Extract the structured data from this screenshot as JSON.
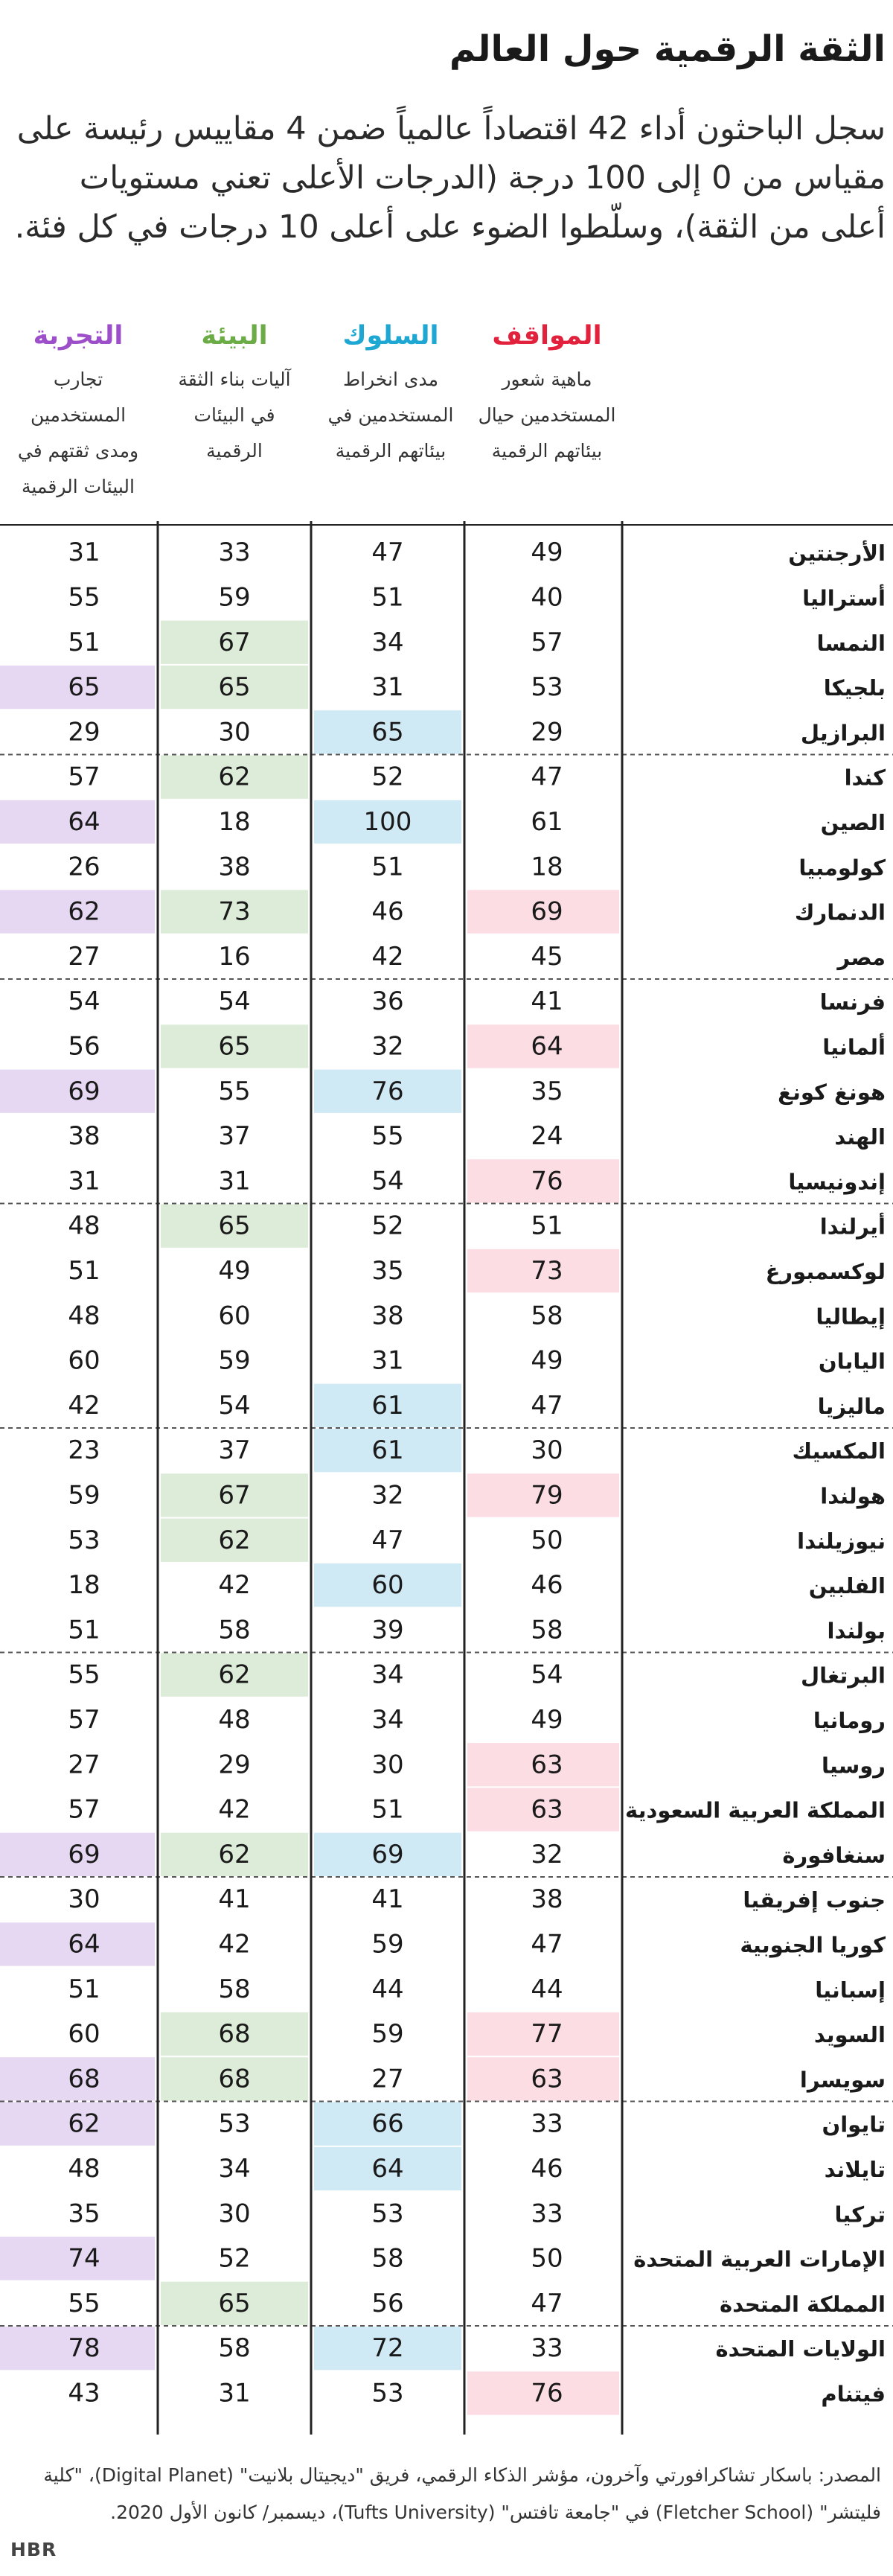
{
  "title": "الثقة الرقمية حول العالم",
  "intro": "سجل الباحثون أداء 42 اقتصاداً عالمياً ضمن 4 مقاييس رئيسة على مقياس من 0 إلى 100 درجة (الدرجات الأعلى تعني مستويات أعلى من الثقة)، وسلّطوا الضوء على أعلى 10 درجات في كل فئة.",
  "source": "المصدر: باسكار تشاكرافورتي وآخرون، مؤشر الذكاء الرقمي، فريق \"ديجيتال بلانيت\" (Digital Planet)، \"كلية فليتشر\" (Fletcher School) في \"جامعة تافتس\" (Tufts University)، ديسمبر/ كانون الأول 2020.",
  "brand": "HBR",
  "colors": {
    "attitudes": "#e2213c",
    "behavior": "#1ea7d2",
    "environment": "#6bac46",
    "experience": "#9c4fc8",
    "attitudes_highlight": "#fcdde3",
    "behavior_highlight": "#cfe9f5",
    "environment_highlight": "#dcecd8",
    "experience_highlight": "#e6d8f2"
  },
  "chart_data": {
    "type": "table",
    "scale": [
      0,
      100
    ],
    "highlight_rule": "top 10 per category",
    "categories": [
      {
        "key": "attitudes",
        "label": "المواقف",
        "description": "ماهية شعور المستخدمين حيال بيئاتهم الرقمية"
      },
      {
        "key": "behavior",
        "label": "السلوك",
        "description": "مدى انخراط المستخدمين في بيئاتهم الرقمية"
      },
      {
        "key": "environment",
        "label": "البيئة",
        "description": "آليات بناء الثقة في البيئات الرقمية"
      },
      {
        "key": "experience",
        "label": "التجربة",
        "description": "تجارب المستخدمين ومدى ثقتهم في البيئات الرقمية"
      }
    ],
    "rows": [
      {
        "country": "الأرجنتين",
        "attitudes": 49,
        "behavior": 47,
        "environment": 33,
        "experience": 31
      },
      {
        "country": "أستراليا",
        "attitudes": 40,
        "behavior": 51,
        "environment": 59,
        "experience": 55
      },
      {
        "country": "النمسا",
        "attitudes": 57,
        "behavior": 34,
        "environment": 67,
        "experience": 51
      },
      {
        "country": "بلجيكا",
        "attitudes": 53,
        "behavior": 31,
        "environment": 65,
        "experience": 65
      },
      {
        "country": "البرازيل",
        "attitudes": 29,
        "behavior": 65,
        "environment": 30,
        "experience": 29
      },
      {
        "country": "كندا",
        "attitudes": 47,
        "behavior": 52,
        "environment": 62,
        "experience": 57
      },
      {
        "country": "الصين",
        "attitudes": 61,
        "behavior": 100,
        "environment": 18,
        "experience": 64
      },
      {
        "country": "كولومبيا",
        "attitudes": 18,
        "behavior": 51,
        "environment": 38,
        "experience": 26
      },
      {
        "country": "الدنمارك",
        "attitudes": 69,
        "behavior": 46,
        "environment": 73,
        "experience": 62
      },
      {
        "country": "مصر",
        "attitudes": 45,
        "behavior": 42,
        "environment": 16,
        "experience": 27
      },
      {
        "country": "فرنسا",
        "attitudes": 41,
        "behavior": 36,
        "environment": 54,
        "experience": 54
      },
      {
        "country": "ألمانيا",
        "attitudes": 64,
        "behavior": 32,
        "environment": 65,
        "experience": 56
      },
      {
        "country": "هونغ كونغ",
        "attitudes": 35,
        "behavior": 76,
        "environment": 55,
        "experience": 69
      },
      {
        "country": "الهند",
        "attitudes": 24,
        "behavior": 55,
        "environment": 37,
        "experience": 38
      },
      {
        "country": "إندونيسيا",
        "attitudes": 76,
        "behavior": 54,
        "environment": 31,
        "experience": 31
      },
      {
        "country": "أيرلندا",
        "attitudes": 51,
        "behavior": 52,
        "environment": 65,
        "experience": 48
      },
      {
        "country": "لوكسمبورغ",
        "attitudes": 73,
        "behavior": 35,
        "environment": 49,
        "experience": 51
      },
      {
        "country": "إيطاليا",
        "attitudes": 58,
        "behavior": 38,
        "environment": 60,
        "experience": 48
      },
      {
        "country": "اليابان",
        "attitudes": 49,
        "behavior": 31,
        "environment": 59,
        "experience": 60
      },
      {
        "country": "ماليزيا",
        "attitudes": 47,
        "behavior": 61,
        "environment": 54,
        "experience": 42
      },
      {
        "country": "المكسيك",
        "attitudes": 30,
        "behavior": 61,
        "environment": 37,
        "experience": 23
      },
      {
        "country": "هولندا",
        "attitudes": 79,
        "behavior": 32,
        "environment": 67,
        "experience": 59
      },
      {
        "country": "نيوزيلندا",
        "attitudes": 50,
        "behavior": 47,
        "environment": 62,
        "experience": 53
      },
      {
        "country": "الفلبين",
        "attitudes": 46,
        "behavior": 60,
        "environment": 42,
        "experience": 18
      },
      {
        "country": "بولندا",
        "attitudes": 58,
        "behavior": 39,
        "environment": 58,
        "experience": 51
      },
      {
        "country": "البرتغال",
        "attitudes": 54,
        "behavior": 34,
        "environment": 62,
        "experience": 55
      },
      {
        "country": "رومانيا",
        "attitudes": 49,
        "behavior": 34,
        "environment": 48,
        "experience": 57
      },
      {
        "country": "روسيا",
        "attitudes": 63,
        "behavior": 30,
        "environment": 29,
        "experience": 27
      },
      {
        "country": "المملكة العربية  السعودية",
        "attitudes": 63,
        "behavior": 51,
        "environment": 42,
        "experience": 57
      },
      {
        "country": "سنغافورة",
        "attitudes": 32,
        "behavior": 69,
        "environment": 62,
        "experience": 69
      },
      {
        "country": "جنوب إفريقيا",
        "attitudes": 38,
        "behavior": 41,
        "environment": 41,
        "experience": 30
      },
      {
        "country": "كوريا الجنوبية",
        "attitudes": 47,
        "behavior": 59,
        "environment": 42,
        "experience": 64
      },
      {
        "country": "إسبانيا",
        "attitudes": 44,
        "behavior": 44,
        "environment": 58,
        "experience": 51
      },
      {
        "country": "السويد",
        "attitudes": 77,
        "behavior": 59,
        "environment": 68,
        "experience": 60
      },
      {
        "country": "سويسرا",
        "attitudes": 63,
        "behavior": 27,
        "environment": 68,
        "experience": 68
      },
      {
        "country": "تايوان",
        "attitudes": 33,
        "behavior": 66,
        "environment": 53,
        "experience": 62
      },
      {
        "country": "تايلاند",
        "attitudes": 46,
        "behavior": 64,
        "environment": 34,
        "experience": 48
      },
      {
        "country": "تركيا",
        "attitudes": 33,
        "behavior": 53,
        "environment": 30,
        "experience": 35
      },
      {
        "country": "الإمارات العربية المتحدة",
        "attitudes": 50,
        "behavior": 58,
        "environment": 52,
        "experience": 74
      },
      {
        "country": "المملكة المتحدة",
        "attitudes": 47,
        "behavior": 56,
        "environment": 65,
        "experience": 55
      },
      {
        "country": "الولايات المتحدة",
        "attitudes": 33,
        "behavior": 72,
        "environment": 58,
        "experience": 78
      },
      {
        "country": "فيتنام",
        "attitudes": 76,
        "behavior": 53,
        "environment": 31,
        "experience": 43
      }
    ]
  }
}
